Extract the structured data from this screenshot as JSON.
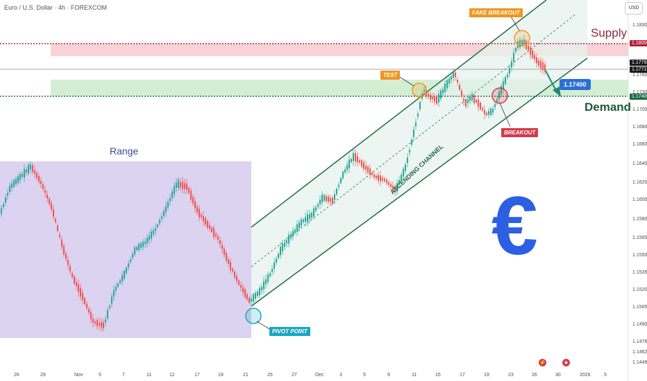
{
  "header": {
    "symbol": "Euro / U.S. Dollar · 4h · FOREXCOM"
  },
  "currency_button": "USD",
  "annotations": {
    "range": "Range",
    "supply": "Supply",
    "demand": "Demand",
    "test": "TEST",
    "fake_breakout": "FAKE BREAKOUT",
    "breakout": "BREAKOUT",
    "pivot_point": "PIVOT POINT",
    "channel": "ASCENDING CHANNEL",
    "target": "1.17400",
    "euro_symbol": "€"
  },
  "price_labels": {
    "supply_level": "1.18000",
    "last_high": "1.17792",
    "last_close": "1.17719",
    "demand_level": "1.17400"
  },
  "colors": {
    "range_box": "#dcd3f0",
    "supply_zone": "#f7cdd3",
    "demand_zone": "#cfeccf",
    "channel_fill": "#e6f2ec",
    "channel_line": "#1d6b43",
    "bull_candle": "#26a69a",
    "bear_candle": "#ef5350",
    "supply_line": "#b4213a",
    "demand_line": "#1d6b43",
    "euro": "#2d5fe3"
  },
  "footer": {
    "icon_left": "lightning-icon",
    "icon_right": "us-flag-icon"
  },
  "chart_data": {
    "type": "candlestick",
    "title": "Euro / U.S. Dollar · 4h · FOREXCOM",
    "y_ticks": [
      "1.18300",
      "1.18000",
      "1.17600",
      "1.17300",
      "1.17000",
      "1.16800",
      "1.16600",
      "1.16400",
      "1.16200",
      "1.16000",
      "1.15800",
      "1.15650",
      "1.15500",
      "1.15350",
      "1.15200",
      "1.15050",
      "1.14900",
      "1.14760",
      "1.14620",
      "1.14490"
    ],
    "x_ticks": [
      "26",
      "29",
      "Nov",
      "5",
      "7",
      "11",
      "12",
      "17",
      "19",
      "21",
      "25",
      "27",
      "Dec",
      "3",
      "5",
      "9",
      "11",
      "15",
      "17",
      "19",
      "23",
      "26",
      "30",
      "2026",
      "5"
    ],
    "levels": {
      "supply": 1.18,
      "demand": 1.174
    },
    "key_prices": {
      "last_high": 1.17792,
      "last_close": 1.17719
    },
    "legend": "none",
    "grid": false
  }
}
